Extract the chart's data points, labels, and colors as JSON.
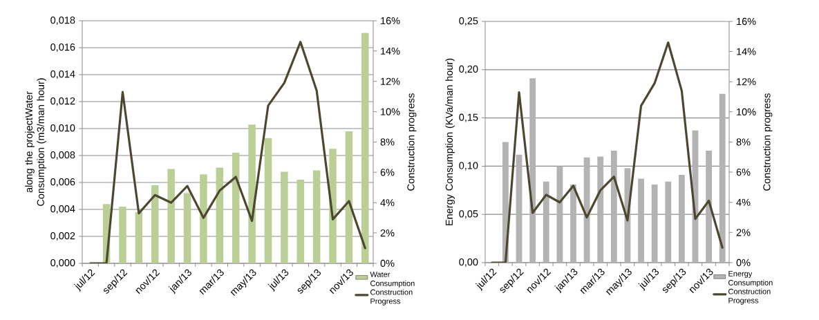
{
  "chart_data": [
    {
      "type": "bar",
      "ylabel": "along the projectWater Consumption (m3/man hour)",
      "y2label": "Construction progress",
      "categories": [
        "jul/12",
        null,
        "sep/12",
        null,
        "nov/12",
        null,
        "jan/13",
        null,
        "mar/13",
        null,
        "may/13",
        null,
        "jul/13",
        null,
        "sep/13",
        null,
        "nov/13",
        null
      ],
      "series": [
        {
          "name": "Water Consumption",
          "color": "#b9cf96",
          "values": [
            null,
            0.0044,
            0.0042,
            0.0038,
            0.0058,
            0.007,
            0.0052,
            0.0066,
            0.0071,
            0.0082,
            0.0103,
            0.0093,
            0.0068,
            0.0062,
            0.0069,
            0.0085,
            0.0098,
            0.0171
          ]
        },
        {
          "name": "Construction Progress",
          "type": "line",
          "axis": "y2",
          "color": "#4d4730",
          "values": [
            0,
            0,
            11.3,
            3.3,
            4.5,
            4.0,
            5.1,
            3.0,
            4.8,
            5.7,
            2.8,
            10.4,
            11.9,
            14.6,
            11.4,
            2.9,
            4.1,
            1.0
          ]
        }
      ],
      "ylim": [
        0,
        0.018
      ],
      "yticks": [
        {
          "value": 0,
          "label": "0,000"
        },
        {
          "value": 0.002,
          "label": "0,002"
        },
        {
          "value": 0.004,
          "label": "0,004"
        },
        {
          "value": 0.006,
          "label": "0,006"
        },
        {
          "value": 0.008,
          "label": "0,008"
        },
        {
          "value": 0.01,
          "label": "0,010"
        },
        {
          "value": 0.012,
          "label": "0,012"
        },
        {
          "value": 0.014,
          "label": "0,014"
        },
        {
          "value": 0.016,
          "label": "0,016"
        },
        {
          "value": 0.018,
          "label": "0,018"
        }
      ],
      "y2lim": [
        0,
        16
      ],
      "y2ticks": [
        {
          "value": 0,
          "label": "0%"
        },
        {
          "value": 2,
          "label": "2%"
        },
        {
          "value": 4,
          "label": "4%"
        },
        {
          "value": 6,
          "label": "6%"
        },
        {
          "value": 8,
          "label": "8%"
        },
        {
          "value": 10,
          "label": "10%"
        },
        {
          "value": 12,
          "label": "12%"
        },
        {
          "value": 14,
          "label": "14%"
        },
        {
          "value": 16,
          "label": "16%"
        }
      ],
      "grid": "y",
      "legend": "bottom right"
    },
    {
      "type": "bar",
      "ylabel": "Energy Consumption (KVa/man hour)",
      "y2label": "Construction progress",
      "categories": [
        "jul/12",
        null,
        "sep/12",
        null,
        "nov/12",
        null,
        "jan/13",
        null,
        "mar/13",
        null,
        "may/13",
        null,
        "jul/13",
        null,
        "sep/13",
        null,
        "nov/13",
        null
      ],
      "series": [
        {
          "name": "Energy Consumption",
          "color": "#b3b3b3",
          "values": [
            null,
            0.125,
            0.112,
            0.191,
            0.084,
            0.1,
            0.081,
            0.109,
            0.11,
            0.116,
            0.098,
            0.087,
            0.081,
            0.084,
            0.091,
            0.137,
            0.116,
            0.175
          ]
        },
        {
          "name": "Construction Progress",
          "type": "line",
          "axis": "y2",
          "color": "#4d4730",
          "values": [
            0,
            0,
            11.3,
            3.3,
            4.5,
            4.0,
            5.1,
            3.0,
            4.8,
            5.7,
            2.8,
            10.4,
            11.9,
            14.6,
            11.4,
            2.9,
            4.1,
            1.0
          ]
        }
      ],
      "ylim": [
        0,
        0.25
      ],
      "yticks": [
        {
          "value": 0,
          "label": "0,00"
        },
        {
          "value": 0.05,
          "label": "0,05"
        },
        {
          "value": 0.1,
          "label": "0,10"
        },
        {
          "value": 0.15,
          "label": "0,15"
        },
        {
          "value": 0.2,
          "label": "0,20"
        },
        {
          "value": 0.25,
          "label": "0,25"
        }
      ],
      "y2lim": [
        0,
        16
      ],
      "y2ticks": [
        {
          "value": 0,
          "label": "0%"
        },
        {
          "value": 2,
          "label": "2%"
        },
        {
          "value": 4,
          "label": "4%"
        },
        {
          "value": 6,
          "label": "6%"
        },
        {
          "value": 8,
          "label": "8%"
        },
        {
          "value": 10,
          "label": "10%"
        },
        {
          "value": 12,
          "label": "12%"
        },
        {
          "value": 14,
          "label": "14%"
        },
        {
          "value": 16,
          "label": "16%"
        }
      ],
      "grid": "y",
      "legend": "bottom right"
    }
  ]
}
